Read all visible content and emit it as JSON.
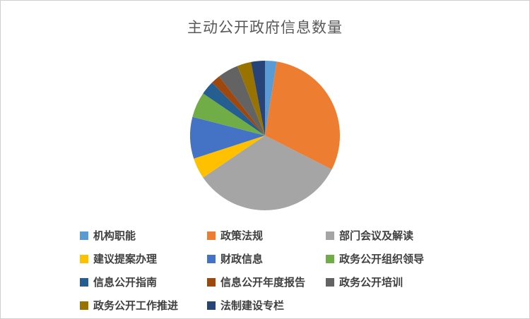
{
  "chart_data": {
    "type": "pie",
    "title": "主动公开政府信息数量",
    "legend_position": "bottom",
    "start_angle_deg": 0,
    "direction": "clockwise",
    "values_are_percent_estimates": true,
    "slices": [
      {
        "label": "机构职能",
        "value": 2.5,
        "color": "#5B9BD5"
      },
      {
        "label": "政策法规",
        "value": 30,
        "color": "#ED7D31"
      },
      {
        "label": "部门会议及解读",
        "value": 33,
        "color": "#A5A5A5"
      },
      {
        "label": "建议提案办理",
        "value": 4.5,
        "color": "#FFC000"
      },
      {
        "label": "财政信息",
        "value": 9,
        "color": "#4472C4"
      },
      {
        "label": "政务公开组织领导",
        "value": 5.5,
        "color": "#70AD47"
      },
      {
        "label": "信息公开指南",
        "value": 3,
        "color": "#255E91"
      },
      {
        "label": "信息公开年度报告",
        "value": 2,
        "color": "#9E480E"
      },
      {
        "label": "政务公开培训",
        "value": 4.5,
        "color": "#636363"
      },
      {
        "label": "政务公开工作推进",
        "value": 3,
        "color": "#997300"
      },
      {
        "label": "法制建设专栏",
        "value": 3,
        "color": "#264478"
      }
    ]
  }
}
